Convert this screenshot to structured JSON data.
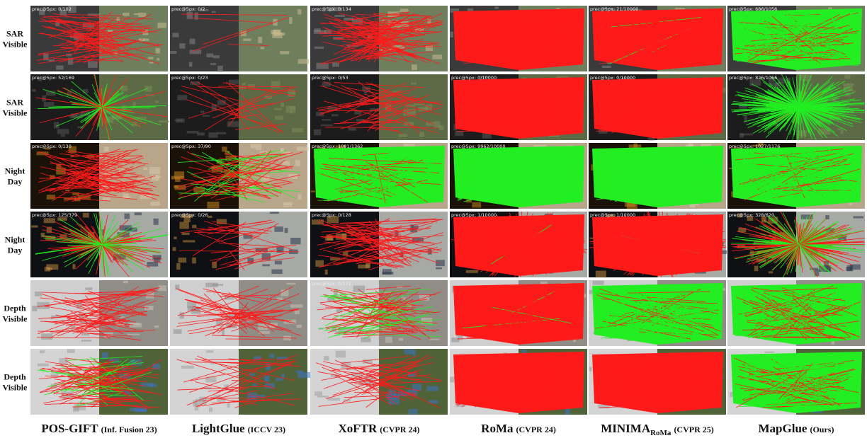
{
  "row_labels": [
    [
      "SAR",
      "Visible"
    ],
    [
      "SAR",
      "Visible"
    ],
    [
      "Night",
      "Day"
    ],
    [
      "Night",
      "Day"
    ],
    [
      "Depth",
      "Visible"
    ],
    [
      "Depth",
      "Visible"
    ]
  ],
  "methods": [
    {
      "name": "POS-GIFT",
      "venue": "(Inf. Fusion 23)"
    },
    {
      "name": "LightGlue",
      "venue": "(ICCV 23)"
    },
    {
      "name": "XoFTR",
      "venue": "(CVPR 24)"
    },
    {
      "name": "RoMa",
      "venue": "(CVPR 24)"
    },
    {
      "name": "MINIMA",
      "subscript": "RoMa",
      "venue": "(CVPR 25)"
    },
    {
      "name": "MapGlue",
      "venue": "(Ours)"
    }
  ],
  "precision_labels": [
    [
      "prec@5px: 0/102",
      "prec@5px: 0/2",
      "prec@5px: 0/134",
      null,
      "prec@5px: 21/10000",
      "prec@5px: 686/1056"
    ],
    [
      "prec@5px: 52/169",
      "prec@5px: 0/23",
      "prec@5px: 0/53",
      "prec@5px: 0/10000",
      "prec@5px: 0/10000",
      "prec@5px: 826/1066"
    ],
    [
      "prec@5px: 0/130",
      "prec@5px: 37/90",
      "prec@5px: 1081/1362",
      "prec@5px: 9962/10000",
      null,
      "prec@5px: 1027/1176"
    ],
    [
      "prec@5px: 125/379",
      "prec@5px: 0/26",
      "prec@5px: 0/128",
      "prec@5px: 1/10000",
      "prec@5px: 1/10000",
      "prec@5px: 328/620"
    ],
    [
      null,
      null,
      "prec@5px: 0/172",
      null,
      null,
      null
    ],
    [
      null,
      null,
      null,
      null,
      null,
      null
    ]
  ]
}
